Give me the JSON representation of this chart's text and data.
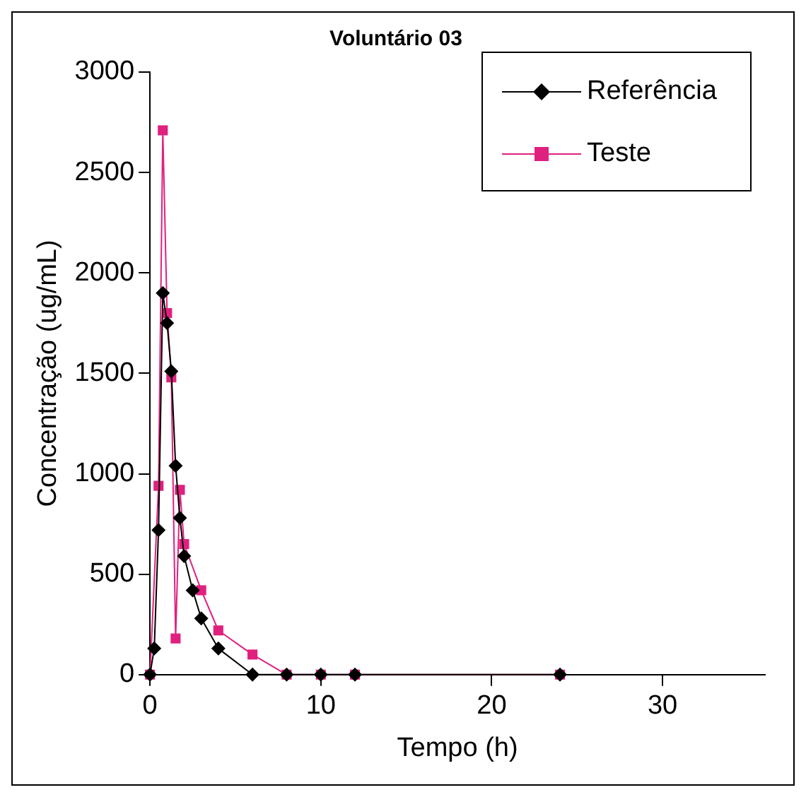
{
  "chart_data": {
    "type": "line",
    "title": "Voluntário 03",
    "xlabel": "Tempo (h)",
    "ylabel": "Concentração (ug/mL)",
    "xlim": [
      0,
      36
    ],
    "xticks": [
      0,
      10,
      20,
      30
    ],
    "ylim": [
      0,
      3000
    ],
    "yticks": [
      0,
      500,
      1000,
      1500,
      2000,
      2500,
      3000
    ],
    "grid": false,
    "legend": "top right",
    "series": [
      {
        "name": "Referência",
        "color": "#000000",
        "marker": "diamond",
        "x": [
          0,
          0.25,
          0.5,
          0.75,
          1,
          1.25,
          1.5,
          1.75,
          2,
          2.5,
          3,
          4,
          6,
          8,
          10,
          12,
          24
        ],
        "values": [
          0,
          130,
          720,
          1900,
          1750,
          1510,
          1040,
          780,
          590,
          420,
          280,
          130,
          0,
          0,
          0,
          0,
          0
        ]
      },
      {
        "name": "Teste",
        "color": "#e0207f",
        "marker": "square",
        "x": [
          0,
          0.5,
          0.75,
          1,
          1.25,
          1.5,
          1.75,
          2,
          3,
          4,
          6,
          8,
          10,
          12,
          24
        ],
        "values": [
          0,
          940,
          2710,
          1800,
          1480,
          180,
          920,
          650,
          420,
          220,
          100,
          0,
          0,
          0,
          0
        ]
      }
    ]
  }
}
